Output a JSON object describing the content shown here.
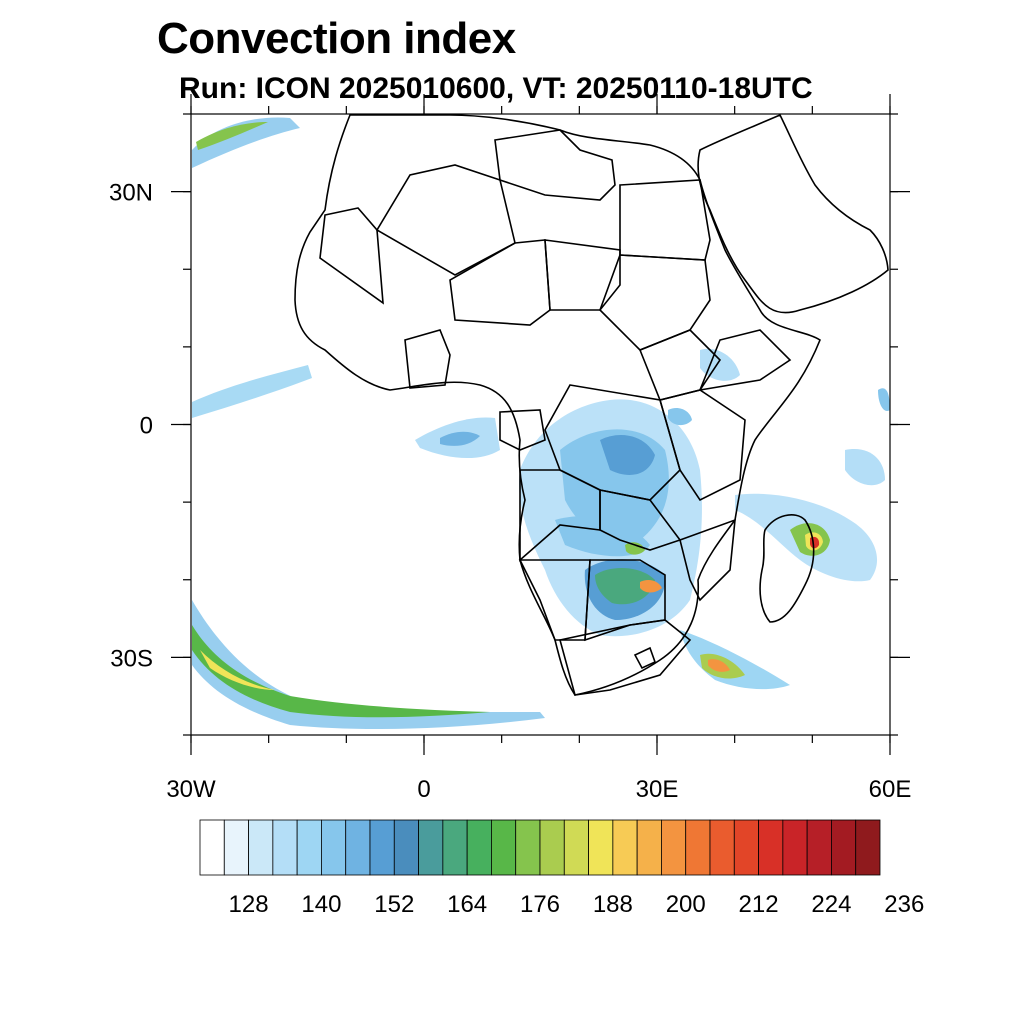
{
  "title": "Convection index",
  "subtitle": "Run: ICON 2025010600,  VT: 20250110-18UTC",
  "map": {
    "region": "Africa",
    "lon_range": [
      -30,
      60
    ],
    "lat_range": [
      -40,
      40
    ],
    "x_ticks": [
      {
        "lon": -30,
        "label": "30W"
      },
      {
        "lon": 0,
        "label": "0"
      },
      {
        "lon": 30,
        "label": "30E"
      },
      {
        "lon": 60,
        "label": "60E"
      }
    ],
    "y_ticks": [
      {
        "lat": 30,
        "label": "30N"
      },
      {
        "lat": 0,
        "label": "0"
      },
      {
        "lat": -30,
        "label": "30S"
      }
    ]
  },
  "colorbar": {
    "colors": [
      "#ffffff",
      "#e8f4fc",
      "#cbe8f8",
      "#b4def7",
      "#9ed6f3",
      "#86c6ec",
      "#6fb3e2",
      "#579ed4",
      "#4a8dbd",
      "#4a9c9c",
      "#4aa87e",
      "#47b05e",
      "#58b748",
      "#85c44d",
      "#aacc4f",
      "#d0da55",
      "#f0e458",
      "#f7cb55",
      "#f5b14a",
      "#f39440",
      "#ef7734",
      "#ea5c2e",
      "#e24528",
      "#d83027",
      "#c92428",
      "#b61f27",
      "#a31b22",
      "#8f1a1d"
    ],
    "labels": [
      "128",
      "140",
      "152",
      "164",
      "176",
      "188",
      "200",
      "212",
      "224",
      "236"
    ]
  }
}
